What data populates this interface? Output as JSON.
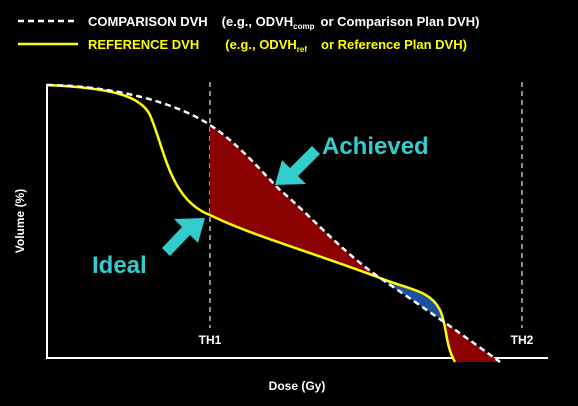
{
  "legend": [
    {
      "name": "COMPARISON DVH",
      "example": "(e.g., ODVH",
      "subscript": "comp",
      "note": "or Comparison Plan DVH)"
    },
    {
      "name": "REFERENCE DVH",
      "example": "(e.g., ODVH",
      "subscript": "ref",
      "note": "or Reference Plan DVH)"
    }
  ],
  "annotations": {
    "achieved": "Achieved",
    "ideal": "Ideal"
  },
  "thresholds": [
    "TH1",
    "TH2"
  ],
  "axes": {
    "x_label": "Dose (Gy)",
    "y_label": "Volume (%)"
  }
}
